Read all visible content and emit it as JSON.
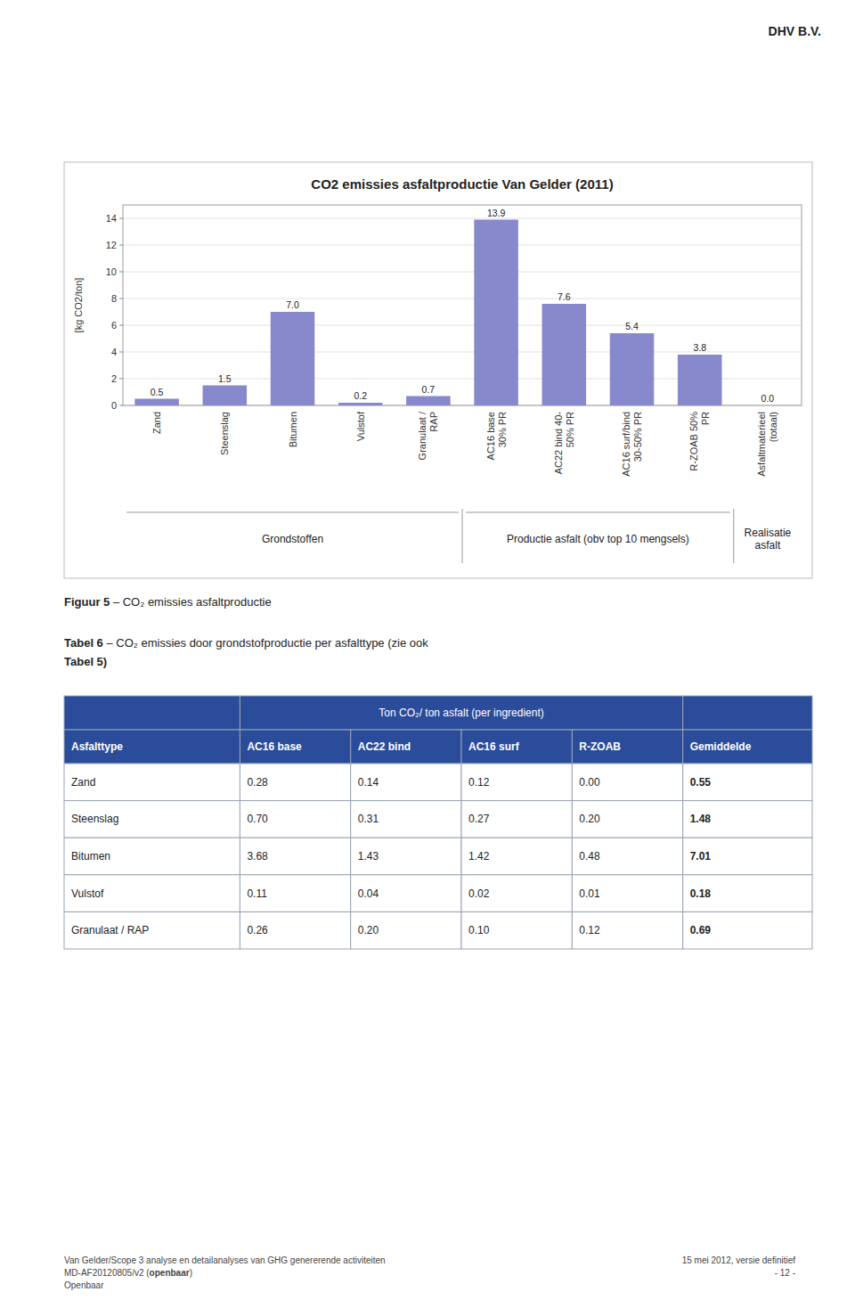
{
  "page_header": "DHV B.V.",
  "chart_data": {
    "type": "bar",
    "title": "CO2 emissies asfaltproductie Van Gelder (2011)",
    "categories": [
      "Zand",
      "Steenslag",
      "Bitumen",
      "Vulstof",
      "Granulaat /\nRAP",
      "AC16 base\n30% PR",
      "AC22 bind 40-\n50% PR",
      "AC16 surf/bind\n30-50% PR",
      "R-ZOAB 50%\nPR",
      "Asfaltmaterieel\n(totaal)"
    ],
    "values": [
      0.5,
      1.5,
      7.0,
      0.2,
      0.7,
      13.9,
      7.6,
      5.4,
      3.8,
      0.0
    ],
    "value_labels": [
      "0.5",
      "1.5",
      "7.0",
      "0.2",
      "0.7",
      "13.9",
      "7.6",
      "5.4",
      "3.8",
      "0.0"
    ],
    "color": "#8888CC",
    "ylabel": "[kg CO2/ton]",
    "ylim": [
      0,
      15
    ],
    "yticks": [
      0,
      2,
      4,
      6,
      8,
      10,
      12,
      14
    ],
    "grid": true,
    "data_labels": true,
    "group_labels": [
      "Grondstoffen",
      "Productie asfalt (obv top 10 mengsels)",
      "Realisatie\nasfalt"
    ]
  },
  "figure_caption": {
    "label": "Figuur 5",
    "text": " – CO₂ emissies asfaltproductie"
  },
  "table_caption": {
    "label": "Tabel 6",
    "text": " – CO₂ emissies door grondstofproductie per asfalttype (zie ook",
    "ref": "Tabel 5)"
  },
  "table": {
    "header": "Ton CO₂/ ton asfalt (per ingredient)",
    "columns": [
      "Asfalttype",
      "AC16 base",
      "AC22 bind",
      "AC16 surf",
      "R-ZOAB",
      "Gemiddelde"
    ],
    "rows": [
      [
        "Zand",
        "0.28",
        "0.14",
        "0.12",
        "0.00",
        "0.55"
      ],
      [
        "Steenslag",
        "0.70",
        "0.31",
        "0.27",
        "0.20",
        "1.48"
      ],
      [
        "Bitumen",
        "3.68",
        "1.43",
        "1.42",
        "0.48",
        "7.01"
      ],
      [
        "Vulstof",
        "0.11",
        "0.04",
        "0.02",
        "0.01",
        "0.18"
      ],
      [
        "Granulaat / RAP",
        "0.26",
        "0.20",
        "0.10",
        "0.12",
        "0.69"
      ]
    ]
  },
  "footer": {
    "left1": "Van Gelder/Scope 3 analyse en detailanalyses van GHG genererende activiteiten",
    "left2a": "MD-AF20120805/v2 (",
    "left2b": "openbaar",
    "left2c": ")",
    "left3": "Openbaar",
    "right1": "15 mei 2012, versie definitief",
    "right2": "- 12 -"
  }
}
